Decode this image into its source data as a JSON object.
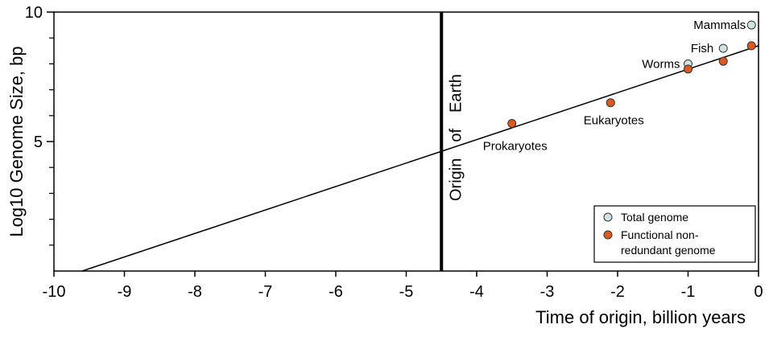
{
  "chart_data": {
    "type": "scatter",
    "xlabel": "Time of origin, billion years",
    "ylabel": "Log10 Genome Size, bp",
    "xlim": [
      -10,
      0
    ],
    "ylim": [
      0,
      10
    ],
    "x_ticks": [
      -10,
      -9,
      -8,
      -7,
      -6,
      -5,
      -4,
      -3,
      -2,
      -1,
      0
    ],
    "y_ticks_labeled": [
      5,
      10
    ],
    "y_ticks_minor": [
      1,
      2,
      3,
      4,
      6,
      7,
      8,
      9
    ],
    "series": [
      {
        "name": "Total genome",
        "color": "#cfe3e6",
        "points": [
          {
            "x": -1.0,
            "y": 8.0,
            "label": "Worms"
          },
          {
            "x": -0.5,
            "y": 8.6,
            "label": "Fish"
          },
          {
            "x": -0.1,
            "y": 9.5,
            "label": "Mammals"
          }
        ]
      },
      {
        "name": "Functional non-redundant genome",
        "name_lines": [
          "Functional non-",
          "redundant genome"
        ],
        "color": "#e05a1e",
        "points": [
          {
            "x": -3.5,
            "y": 5.7,
            "label": "Prokaryotes"
          },
          {
            "x": -2.1,
            "y": 6.5,
            "label": "Eukaryotes"
          },
          {
            "x": -1.0,
            "y": 7.8,
            "label": ""
          },
          {
            "x": -0.5,
            "y": 8.1,
            "label": ""
          },
          {
            "x": -0.1,
            "y": 8.7,
            "label": ""
          }
        ]
      }
    ],
    "trend_line": {
      "x": [
        -9.6,
        0
      ],
      "y": [
        0,
        8.7
      ]
    },
    "vertical_line": {
      "x": -4.5,
      "label_words": [
        "Origin",
        "of",
        "Earth"
      ]
    },
    "legend_position": "bottom-right",
    "grid": false
  }
}
